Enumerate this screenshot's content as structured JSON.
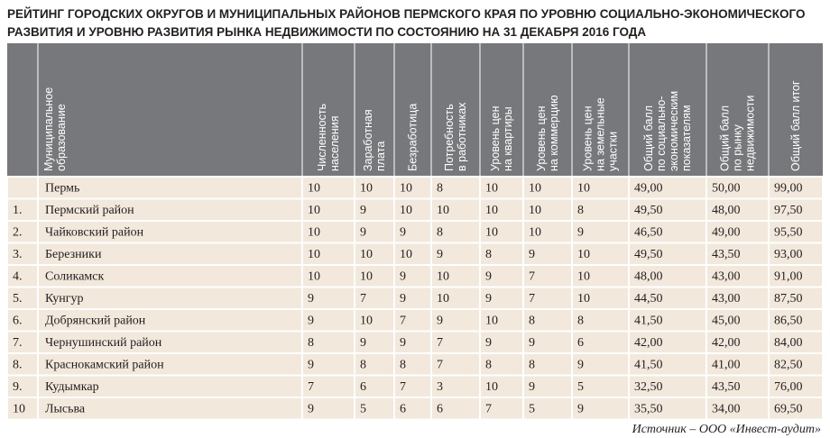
{
  "title": [
    "РЕЙТИНГ ГОРОДСКИХ ОКРУГОВ И МУНИЦИПАЛЬНЫХ РАЙОНОВ ПЕРМСКОГО КРАЯ ПО УРОВНЮ СОЦИАЛЬНО-ЭКОНОМИЧЕСКОГО",
    "РАЗВИТИЯ И УРОВНЮ РАЗВИТИЯ РЫНКА НЕДВИЖИМОСТИ ПО СОСТОЯНИЮ НА 31 ДЕКАБРЯ 2016 ГОДА"
  ],
  "table": {
    "columns": [
      null,
      [
        "Муниципальное",
        "образование"
      ],
      [
        "Численность",
        "населения"
      ],
      [
        "Заработная",
        "плата"
      ],
      [
        "Безработица"
      ],
      [
        "Потребность",
        "в работниках"
      ],
      [
        "Уровень цен",
        "на квартиры"
      ],
      [
        "Уровень цен",
        "на коммерцию"
      ],
      [
        "Уровень цен",
        "на земельные",
        "участки"
      ],
      [
        "Общий балл",
        "по социально-",
        "экономическим",
        "показателям"
      ],
      [
        "Общий балл",
        "по рынку",
        "недвижимости"
      ],
      [
        "Общий балл итог"
      ]
    ],
    "rows": [
      [
        null,
        "Пермь",
        "10",
        "10",
        "10",
        "8",
        "10",
        "10",
        "10",
        "49,00",
        "50,00",
        "99,00"
      ],
      [
        "1.",
        "Пермский район",
        "10",
        "9",
        "10",
        "10",
        "10",
        "10",
        "8",
        "49,50",
        "48,00",
        "97,50"
      ],
      [
        "2.",
        "Чайковский район",
        "10",
        "9",
        "9",
        "8",
        "10",
        "10",
        "9",
        "46,50",
        "49,00",
        "95,50"
      ],
      [
        "3.",
        "Березники",
        "10",
        "10",
        "10",
        "9",
        "8",
        "9",
        "10",
        "49,50",
        "43,50",
        "93,00"
      ],
      [
        "4.",
        "Соликамск",
        "10",
        "10",
        "9",
        "10",
        "9",
        "7",
        "10",
        "48,00",
        "43,00",
        "91,00"
      ],
      [
        "5.",
        "Кунгур",
        "9",
        "7",
        "9",
        "10",
        "9",
        "7",
        "10",
        "44,50",
        "43,00",
        "87,50"
      ],
      [
        "6.",
        "Добрянский район",
        "9",
        "10",
        "7",
        "9",
        "10",
        "8",
        "8",
        "41,50",
        "45,00",
        "86,50"
      ],
      [
        "7.",
        "Чернушинский район",
        "8",
        "9",
        "9",
        "7",
        "9",
        "9",
        "6",
        "42,00",
        "42,00",
        "84,00"
      ],
      [
        "8.",
        "Краснокамский район",
        "9",
        "8",
        "8",
        "7",
        "8",
        "8",
        "9",
        "41,50",
        "41,00",
        "82,50"
      ],
      [
        "9.",
        "Кудымкар",
        "7",
        "6",
        "7",
        "3",
        "10",
        "9",
        "5",
        "32,50",
        "43,50",
        "76,00"
      ],
      [
        "10",
        "Лысьва",
        "9",
        "5",
        "6",
        "6",
        "7",
        "5",
        "9",
        "35,50",
        "34,00",
        "69,50"
      ]
    ]
  },
  "source": "Источник – ООО «Инвест-аудит»"
}
